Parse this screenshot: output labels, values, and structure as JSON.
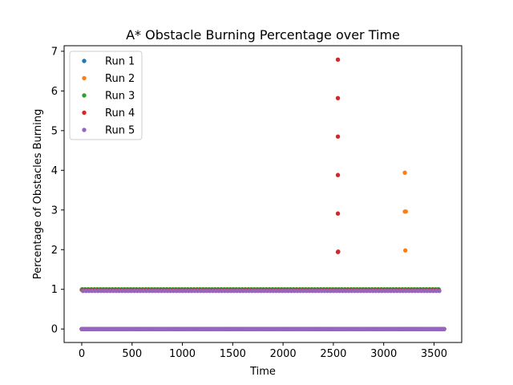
{
  "chart_data": {
    "type": "scatter",
    "title": "A* Obstacle Burning Percentage over Time",
    "xlabel": "Time",
    "ylabel": "Percentage of Obstacles Burning",
    "xlim": [
      -175,
      3775
    ],
    "ylim": [
      -0.34,
      7.14
    ],
    "xticks": [
      0,
      500,
      1000,
      1500,
      2000,
      2500,
      3000,
      3500
    ],
    "yticks": [
      0,
      1,
      2,
      3,
      4,
      5,
      6,
      7
    ],
    "grid": false,
    "legend_position": "top-left",
    "time_range": [
      0,
      3600
    ],
    "series": [
      {
        "name": "Run 1",
        "color": "#1f77b4",
        "baseline": {
          "value": 0,
          "x_range": [
            0,
            3600
          ]
        },
        "ones": {
          "value": 0.99,
          "x_range": [
            0,
            3550
          ],
          "step": 30
        },
        "points": []
      },
      {
        "name": "Run 2",
        "color": "#ff7f0e",
        "baseline": {
          "value": 0,
          "x_range": [
            0,
            3600
          ]
        },
        "ones": {
          "value": 1.0,
          "x_range": [
            0,
            3550
          ],
          "step": 30
        },
        "points": [
          [
            3210,
            3.94
          ],
          [
            3210,
            2.96
          ],
          [
            3220,
            2.96
          ],
          [
            3215,
            1.98
          ]
        ]
      },
      {
        "name": "Run 3",
        "color": "#2ca02c",
        "baseline": {
          "value": 0,
          "x_range": [
            0,
            3600
          ]
        },
        "ones": {
          "value": 1.0,
          "x_range": [
            0,
            3550
          ],
          "step": 30
        },
        "points": []
      },
      {
        "name": "Run 4",
        "color": "#d62728",
        "baseline": {
          "value": 0,
          "x_range": [
            0,
            3600
          ]
        },
        "ones": {
          "value": 0.98,
          "x_range": [
            0,
            3550
          ],
          "step": 30
        },
        "points": [
          [
            2545,
            6.79
          ],
          [
            2545,
            5.82
          ],
          [
            2545,
            4.85
          ],
          [
            2545,
            3.88
          ],
          [
            2545,
            2.91
          ],
          [
            2545,
            1.94
          ],
          [
            2548,
            1.95
          ]
        ]
      },
      {
        "name": "Run 5",
        "color": "#9467bd",
        "baseline": {
          "value": 0,
          "x_range": [
            0,
            3600
          ]
        },
        "ones": {
          "value": 0.96,
          "x_range": [
            0,
            3550
          ],
          "step": 30
        },
        "points": []
      }
    ]
  }
}
